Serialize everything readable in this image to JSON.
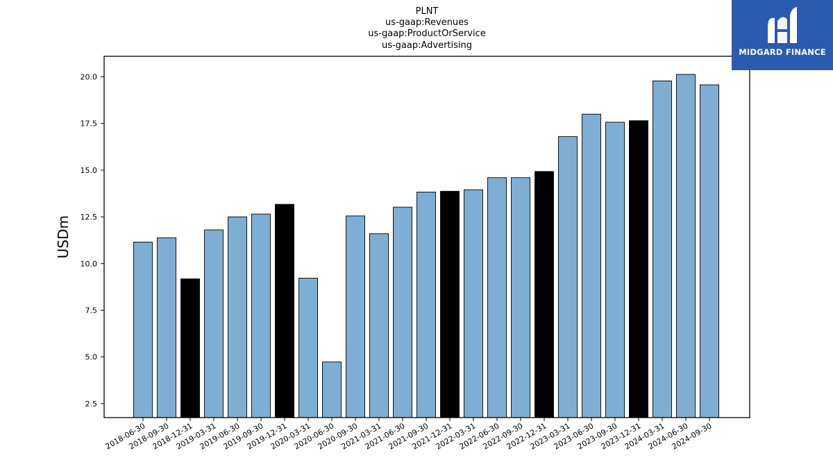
{
  "logo": {
    "text": "MIDGARD FINANCE",
    "icon": "midgard-m-logo-icon",
    "color": "#2a5bb0"
  },
  "chart_data": {
    "type": "bar",
    "title_lines": [
      "PLNT",
      "us-gaap:Revenues",
      "us-gaap:ProductOrService",
      "us-gaap:Advertising"
    ],
    "ylabel": "USDm",
    "xlabel": "",
    "ylim": [
      1.75,
      21.1
    ],
    "yticks": [
      2.5,
      5.0,
      7.5,
      10.0,
      12.5,
      15.0,
      17.5,
      20.0
    ],
    "grid": false,
    "colors": {
      "quarter": "#7eaed3",
      "year_end": "#000000"
    },
    "categories": [
      "2018-06-30",
      "2018-09-30",
      "2018-12-31",
      "2019-03-31",
      "2019-06-30",
      "2019-09-30",
      "2019-12-31",
      "2020-03-31",
      "2020-06-30",
      "2020-09-30",
      "2021-03-31",
      "2021-06-30",
      "2021-09-30",
      "2021-12-31",
      "2022-03-31",
      "2022-06-30",
      "2022-09-30",
      "2022-12-31",
      "2023-03-31",
      "2023-06-30",
      "2023-09-30",
      "2023-12-31",
      "2024-03-31",
      "2024-06-30",
      "2024-09-30"
    ],
    "values": [
      11.15,
      11.38,
      9.18,
      11.8,
      12.5,
      12.65,
      13.17,
      9.22,
      4.73,
      12.55,
      11.6,
      13.02,
      13.83,
      13.87,
      13.95,
      14.6,
      14.6,
      14.93,
      16.8,
      18.0,
      17.57,
      17.65,
      19.78,
      20.13,
      19.57
    ],
    "year_end_flags": [
      false,
      false,
      true,
      false,
      false,
      false,
      true,
      false,
      false,
      false,
      false,
      false,
      false,
      true,
      false,
      false,
      false,
      true,
      false,
      false,
      false,
      true,
      false,
      false,
      false
    ]
  }
}
